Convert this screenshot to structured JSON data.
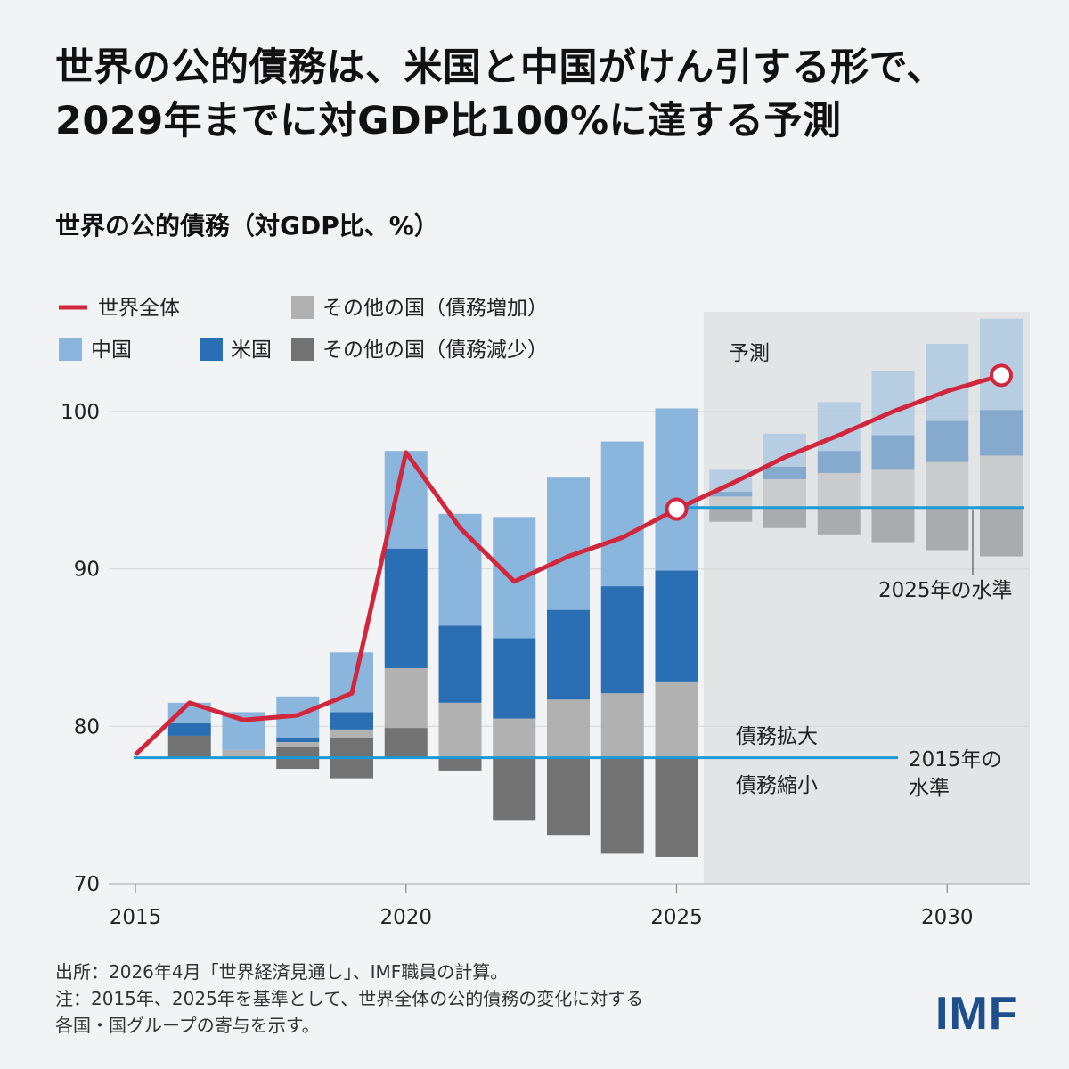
{
  "headline": {
    "line1": "世界の公的債務は、米国と中国がけん引する形で、",
    "line2": "2029年までに対GDP比100%に達する予測"
  },
  "chart_title": "世界の公的債務（対GDP比、%）",
  "legend": {
    "world": "世界全体",
    "others_increase": "その他の国（債務増加）",
    "china": "中国",
    "us": "米国",
    "others_decrease": "その他の国（債務減少）"
  },
  "colors": {
    "world": "#d1263b",
    "china": "#8ab6de",
    "us": "#2a6fb4",
    "others_increase": "#b1b1b1",
    "others_decrease": "#727272",
    "reference": "#1c9ad6",
    "forecast_bg": "#e3e4e6"
  },
  "annotations": {
    "forecast": "予測",
    "level_2025": "2025年の水準",
    "debt_expand": "債務拡大",
    "debt_shrink": "債務縮小",
    "level_2015_line1": "2015年の",
    "level_2015_line2": "水準"
  },
  "chart_data": {
    "type": "bar",
    "title": "世界の公的債務（対GDP比、%）",
    "ylim": [
      70,
      103
    ],
    "xlim": [
      2015,
      2031.8
    ],
    "y_ticks": [
      70,
      80,
      90,
      100
    ],
    "x_ticks": [
      2015,
      2020,
      2025,
      2030
    ],
    "forecast_start": 2025.5,
    "base_2015": 78,
    "base_2025": 93.9,
    "world": {
      "name": "世界全体",
      "x": [
        2015,
        2016,
        2017,
        2018,
        2019,
        2020,
        2021,
        2022,
        2023,
        2024,
        2025,
        2026,
        2027,
        2028,
        2029,
        2030,
        2031
      ],
      "values": [
        78.2,
        81.5,
        80.4,
        80.7,
        82.1,
        97.4,
        92.6,
        89.2,
        90.8,
        92.0,
        93.8,
        95.4,
        97.1,
        98.5,
        100.0,
        101.3,
        102.3
      ],
      "highlighted": [
        2025,
        2031
      ]
    },
    "stacks_2015_base": [
      {
        "year": 2016,
        "others_decrease": 1.4,
        "others_increase": 0,
        "us": 0.8,
        "china": 1.3
      },
      {
        "year": 2017,
        "others_decrease": 0,
        "others_increase": 0.5,
        "us": 0,
        "china": 2.4
      },
      {
        "year": 2018,
        "others_decrease": 0.7,
        "others_increase": 0.3,
        "us": 0.3,
        "china": 2.6
      },
      {
        "year": 2019,
        "others_decrease": 1.3,
        "others_increase": 0.5,
        "us": 1.1,
        "china": 3.8
      },
      {
        "year": 2020,
        "others_decrease": 1.9,
        "others_increase": 3.8,
        "us": 7.6,
        "china": 6.2
      },
      {
        "year": 2021,
        "others_decrease": -0.8,
        "others_increase": 3.5,
        "us": 4.9,
        "china": 7.1
      },
      {
        "year": 2022,
        "others_decrease": -4.0,
        "others_increase": 2.5,
        "us": 5.1,
        "china": 7.7
      },
      {
        "year": 2023,
        "others_decrease": -4.9,
        "others_increase": 3.7,
        "us": 5.7,
        "china": 8.4
      },
      {
        "year": 2024,
        "others_decrease": -6.1,
        "others_increase": 4.1,
        "us": 6.8,
        "china": 9.2
      },
      {
        "year": 2025,
        "others_decrease": -6.3,
        "others_increase": 4.8,
        "us": 7.1,
        "china": 10.3
      }
    ],
    "stacks_2025_base": [
      {
        "year": 2026,
        "others_decrease": -0.9,
        "others_increase": 0.7,
        "us": 0.3,
        "china": 1.4
      },
      {
        "year": 2027,
        "others_decrease": -1.3,
        "others_increase": 1.8,
        "us": 0.8,
        "china": 2.1
      },
      {
        "year": 2028,
        "others_decrease": -1.7,
        "others_increase": 2.2,
        "us": 1.4,
        "china": 3.1
      },
      {
        "year": 2029,
        "others_decrease": -2.2,
        "others_increase": 2.4,
        "us": 2.2,
        "china": 4.1
      },
      {
        "year": 2030,
        "others_decrease": -2.7,
        "others_increase": 2.9,
        "us": 2.6,
        "china": 4.9
      },
      {
        "year": 2031,
        "others_decrease": -3.1,
        "others_increase": 3.3,
        "us": 2.9,
        "china": 5.8
      }
    ]
  },
  "footer": {
    "source": "出所：2026年4月「世界経済見通し」、IMF職員の計算。",
    "note_line1": "注：2015年、2025年を基準として、世界全体の公的債務の変化に対する",
    "note_line2": "各国・国グループの寄与を示す。"
  },
  "logo": "IMF"
}
